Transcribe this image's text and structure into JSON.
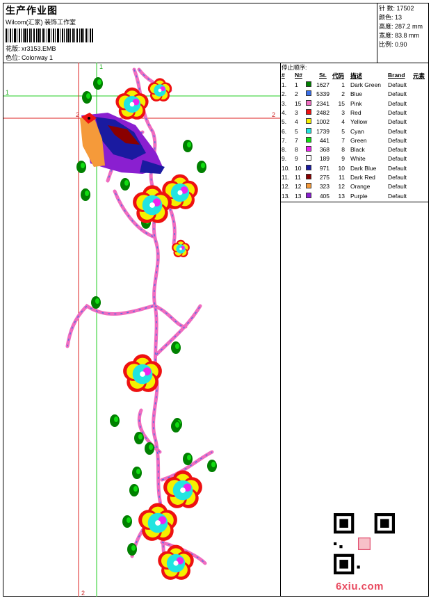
{
  "header": {
    "title": "生产作业图",
    "company": "Wilcom(汇家) 装饰工作室",
    "design_line": "花版:  xr3153.EMB",
    "colorway_line": "色位:  Colorway 1"
  },
  "stats": {
    "stitches": "针 数:  17502",
    "colors": "颜色:  13",
    "height": "高度:  287.2 mm",
    "width": "宽度:  83.8 mm",
    "scale": "比例:  0.90"
  },
  "guides": {
    "h1": "1",
    "h2": "2",
    "v1": "1",
    "v2": "2",
    "corner": "2"
  },
  "stop_sequence": {
    "title": "停止顺序:",
    "headers": {
      "num": "#",
      "n": "N#",
      "st": "St.",
      "code": "代码",
      "desc": "描述",
      "brand": "Brand",
      "elem": "元素"
    },
    "rows": [
      {
        "idx": "1.",
        "n": "1",
        "st": "1627",
        "code": "1",
        "desc": "Dark Green",
        "brand": "Default",
        "color": "#008000"
      },
      {
        "idx": "2.",
        "n": "2",
        "st": "5339",
        "code": "2",
        "desc": "Blue",
        "brand": "Default",
        "color": "#3a6fe8"
      },
      {
        "idx": "3.",
        "n": "15",
        "st": "2341",
        "code": "15",
        "desc": "Pink",
        "brand": "Default",
        "color": "#f06cc0"
      },
      {
        "idx": "4.",
        "n": "3",
        "st": "2482",
        "code": "3",
        "desc": "Red",
        "brand": "Default",
        "color": "#ee1111"
      },
      {
        "idx": "5.",
        "n": "4",
        "st": "1002",
        "code": "4",
        "desc": "Yellow",
        "brand": "Default",
        "color": "#f5f000"
      },
      {
        "idx": "6.",
        "n": "5",
        "st": "1739",
        "code": "5",
        "desc": "Cyan",
        "brand": "Default",
        "color": "#22e4e0"
      },
      {
        "idx": "7.",
        "n": "7",
        "st": "441",
        "code": "7",
        "desc": "Green",
        "brand": "Default",
        "color": "#11dd11"
      },
      {
        "idx": "8.",
        "n": "8",
        "st": "368",
        "code": "8",
        "desc": "Black",
        "brand": "Default",
        "color": "#ee22ee"
      },
      {
        "idx": "9.",
        "n": "9",
        "st": "189",
        "code": "9",
        "desc": "White",
        "brand": "Default",
        "color": "#ffffff"
      },
      {
        "idx": "10.",
        "n": "10",
        "st": "971",
        "code": "10",
        "desc": "Dark Blue",
        "brand": "Default",
        "color": "#1a1aa0"
      },
      {
        "idx": "11.",
        "n": "11",
        "st": "275",
        "code": "11",
        "desc": "Dark Red",
        "brand": "Default",
        "color": "#8a0000"
      },
      {
        "idx": "12.",
        "n": "12",
        "st": "323",
        "code": "12",
        "desc": "Orange",
        "brand": "Default",
        "color": "#f59a3a"
      },
      {
        "idx": "13.",
        "n": "13",
        "st": "405",
        "code": "13",
        "desc": "Purple",
        "brand": "Default",
        "color": "#8a1fd0"
      }
    ]
  },
  "watermark": "6xiu.com"
}
